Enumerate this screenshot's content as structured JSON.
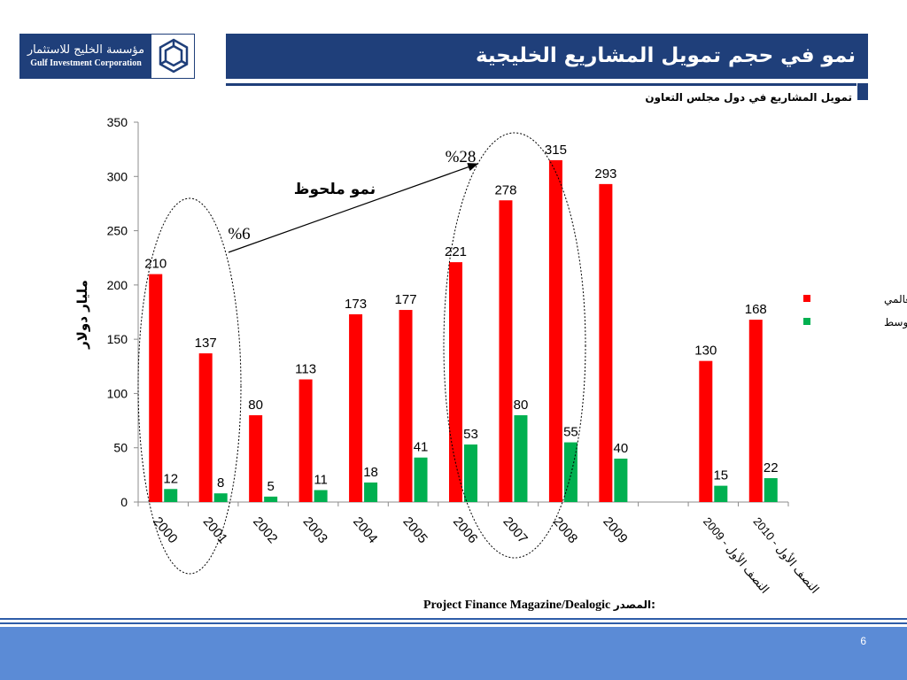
{
  "logo": {
    "arabic_name": "مؤسسة الخليج للاستثمار",
    "english_name": "Gulf Investment Corporation",
    "mark_icon": "gic-hexagon-logo-icon"
  },
  "slide": {
    "title": "نمو في حجم تمويل المشاريع الخليجية",
    "subtitle": "تمويل المشاريع في دول مجلس التعاون",
    "source_label": "المصدر:",
    "source_text": "Project Finance Magazine/Dealogic",
    "page_number": "6"
  },
  "colors": {
    "navy": "#1f3f7a",
    "global_series": "#ff0000",
    "middle_east_series": "#00b050",
    "footer": "#5b8bd6"
  },
  "chart_data": {
    "type": "bar",
    "title": "",
    "xlabel": "",
    "ylabel": "مليار دولار",
    "ylim": [
      0,
      350
    ],
    "yticks": [
      "0",
      "50",
      "100",
      "150",
      "200",
      "250",
      "300",
      "350"
    ],
    "categories": [
      "2000",
      "2001",
      "2002",
      "2003",
      "2004",
      "2005",
      "2006",
      "2007",
      "2008",
      "2009",
      "",
      "النصف الأول - 2009",
      "النصف الأول - 2010"
    ],
    "series": [
      {
        "name": "العالمي",
        "color": "#ff0000",
        "values": [
          210,
          137,
          80,
          113,
          173,
          177,
          221,
          278,
          315,
          293,
          null,
          130,
          168
        ]
      },
      {
        "name": "الشرق الأوسط",
        "color": "#00b050",
        "values": [
          12,
          8,
          5,
          11,
          18,
          41,
          53,
          80,
          55,
          40,
          null,
          15,
          22
        ]
      }
    ],
    "legend_position": "right",
    "grid": false,
    "annotations": {
      "growth_label": "نمو ملحوظ",
      "pct_early": "%6",
      "pct_late": "%28"
    }
  }
}
